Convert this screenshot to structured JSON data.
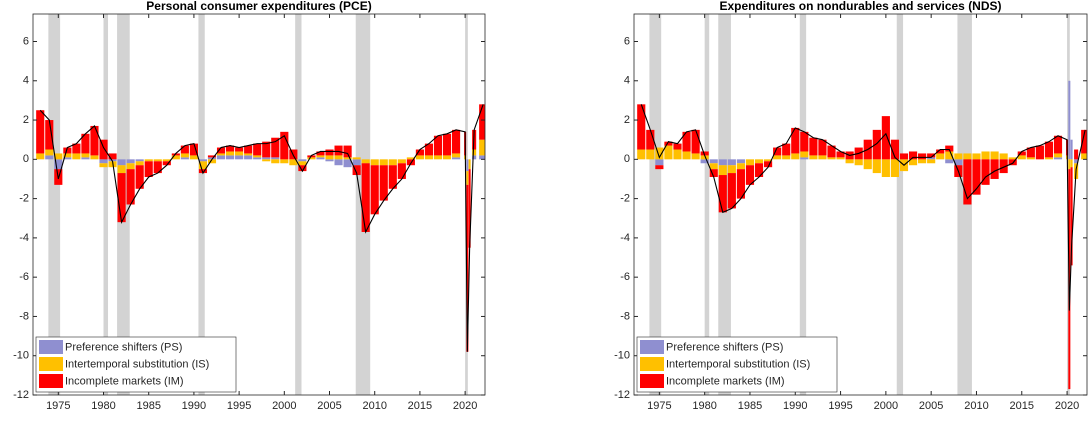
{
  "chart_data": [
    {
      "type": "bar",
      "title": "Personal consumer expenditures (PCE)",
      "x": [
        1973,
        1974,
        1975,
        1976,
        1977,
        1978,
        1979,
        1980,
        1981,
        1982,
        1983,
        1984,
        1985,
        1986,
        1987,
        1988,
        1989,
        1990,
        1991,
        1992,
        1993,
        1994,
        1995,
        1996,
        1997,
        1998,
        1999,
        2000,
        2001,
        2002,
        2003,
        2004,
        2005,
        2006,
        2007,
        2008,
        2009,
        2010,
        2011,
        2012,
        2013,
        2014,
        2015,
        2016,
        2017,
        2018,
        2019,
        2020,
        2020.25,
        2020.5,
        2021,
        2022
      ],
      "series": [
        {
          "name": "Preference shifters (PS)",
          "color": "#8f8fd0",
          "values": [
            0,
            0.2,
            -0.5,
            0.1,
            0,
            0.1,
            0,
            -0.2,
            -0.1,
            -0.3,
            -0.2,
            -0.1,
            0,
            0,
            0,
            0,
            0.1,
            0,
            -0.1,
            0.1,
            0.2,
            0.2,
            0.2,
            0.2,
            0.1,
            0.1,
            0.1,
            0,
            0,
            -0.1,
            0,
            0.1,
            -0.1,
            -0.3,
            -0.4,
            -0.3,
            0,
            0,
            0,
            0,
            0,
            0,
            0,
            0,
            0,
            0,
            0.1,
            0,
            -0.6,
            0,
            0.2,
            0.2
          ]
        },
        {
          "name": "Intertemporal substitution (IS)",
          "color": "#ffc000",
          "values": [
            0.3,
            0.3,
            0.3,
            0.2,
            0.3,
            0.2,
            0.2,
            -0.2,
            -0.3,
            -0.4,
            -0.3,
            -0.2,
            -0.1,
            -0.1,
            -0.1,
            0.2,
            0.2,
            0.2,
            -0.4,
            -0.2,
            0.1,
            0.2,
            0.2,
            0.1,
            0.1,
            -0.1,
            -0.2,
            -0.2,
            -0.3,
            -0.2,
            0.1,
            0.1,
            0.2,
            0.2,
            0.1,
            0.1,
            -0.2,
            -0.3,
            -0.3,
            -0.3,
            -0.2,
            0.1,
            0.2,
            0.2,
            0.2,
            0.2,
            0.2,
            0.2,
            -0.7,
            -0.5,
            0.3,
            0.8
          ]
        },
        {
          "name": "Incomplete markets (IM)",
          "color": "#ff0000",
          "values": [
            2.2,
            1.5,
            -0.8,
            0.3,
            0.5,
            1.0,
            1.5,
            1.0,
            0.3,
            -2.5,
            -1.8,
            -1.2,
            -0.8,
            -0.6,
            -0.2,
            0.1,
            0.4,
            0.6,
            -0.2,
            0.1,
            0.3,
            0.3,
            0.2,
            0.4,
            0.6,
            0.8,
            1.0,
            1.4,
            0.5,
            -0.3,
            0.1,
            0.2,
            0.3,
            0.5,
            0.6,
            -0.5,
            -3.5,
            -2.5,
            -1.8,
            -1.2,
            -0.8,
            -0.3,
            0.3,
            0.6,
            1.0,
            1.1,
            1.2,
            1.2,
            -8.5,
            -4.0,
            1.0,
            1.8
          ]
        }
      ],
      "recessions": [
        [
          1973.9,
          1975.2
        ],
        [
          1980.0,
          1980.5
        ],
        [
          1981.5,
          1982.9
        ],
        [
          1990.5,
          1991.2
        ],
        [
          2001.2,
          2001.9
        ],
        [
          2007.9,
          2009.5
        ],
        [
          2020.0,
          2020.3
        ]
      ],
      "recession_color": "#d3d3d3",
      "xlim": [
        1972.2,
        2022.2
      ],
      "xticks": [
        1975,
        1980,
        1985,
        1990,
        1995,
        2000,
        2005,
        2010,
        2015,
        2020
      ],
      "ylim": [
        -12,
        7.4
      ],
      "yticks": [
        -12,
        -10,
        -8,
        -6,
        -4,
        -2,
        0,
        2,
        4,
        6
      ],
      "legend": "lower left"
    },
    {
      "type": "bar",
      "title": "Expenditures on nondurables and services (NDS)",
      "x": [
        1973,
        1974,
        1975,
        1976,
        1977,
        1978,
        1979,
        1980,
        1981,
        1982,
        1983,
        1984,
        1985,
        1986,
        1987,
        1988,
        1989,
        1990,
        1991,
        1992,
        1993,
        1994,
        1995,
        1996,
        1997,
        1998,
        1999,
        2000,
        2001,
        2002,
        2003,
        2004,
        2005,
        2006,
        2007,
        2008,
        2009,
        2010,
        2011,
        2012,
        2013,
        2014,
        2015,
        2016,
        2017,
        2018,
        2019,
        2020,
        2020.25,
        2020.5,
        2021,
        2022
      ],
      "series": [
        {
          "name": "Preference shifters (PS)",
          "color": "#8f8fd0",
          "values": [
            0,
            0,
            -0.3,
            0,
            0,
            0,
            0,
            -0.2,
            -0.2,
            -0.3,
            -0.3,
            -0.2,
            0,
            0,
            0,
            0,
            0,
            0,
            0.1,
            0,
            0,
            0,
            0,
            0,
            0,
            0,
            0,
            0,
            0,
            0,
            0,
            0,
            0.1,
            0,
            -0.2,
            -0.3,
            0,
            0,
            0,
            0,
            0,
            0,
            0,
            0,
            0,
            0,
            0.1,
            0,
            4.0,
            1.0,
            -0.2,
            0
          ]
        },
        {
          "name": "Intertemporal substitution (IS)",
          "color": "#ffc000",
          "values": [
            0.5,
            0.5,
            0.6,
            0.7,
            0.5,
            0.4,
            0.3,
            0.2,
            -0.3,
            -0.5,
            -0.4,
            -0.3,
            -0.3,
            -0.2,
            -0.1,
            0.2,
            0.2,
            0.3,
            0.3,
            0.2,
            0.2,
            0.1,
            0.1,
            -0.2,
            -0.3,
            -0.5,
            -0.7,
            -0.9,
            -0.9,
            -0.6,
            -0.3,
            -0.2,
            -0.2,
            0.3,
            0.4,
            0.3,
            0.3,
            0.3,
            0.4,
            0.4,
            0.3,
            0.1,
            0.2,
            0.1,
            0,
            0.1,
            0.2,
            0.2,
            -0.5,
            -0.4,
            -0.8,
            0.3
          ]
        },
        {
          "name": "Incomplete markets (IM)",
          "color": "#ff0000",
          "values": [
            2.3,
            1.0,
            -0.2,
            0.2,
            0.3,
            1.0,
            1.2,
            0.2,
            -0.4,
            -1.9,
            -1.8,
            -1.5,
            -1.0,
            -0.7,
            -0.3,
            0.4,
            0.6,
            1.3,
            1.0,
            0.9,
            0.8,
            0.6,
            0.3,
            0.4,
            0.6,
            1.0,
            1.5,
            2.2,
            1.0,
            0.3,
            0.4,
            0.3,
            0.2,
            0.2,
            0.3,
            -0.6,
            -2.3,
            -1.8,
            -1.3,
            -1.0,
            -0.7,
            -0.3,
            0.2,
            0.5,
            0.7,
            0.8,
            0.9,
            0.8,
            -11.2,
            -5.0,
            0.5,
            1.2
          ]
        }
      ],
      "recessions": [
        [
          1973.9,
          1975.2
        ],
        [
          1980.0,
          1980.5
        ],
        [
          1981.5,
          1982.9
        ],
        [
          1990.5,
          1991.2
        ],
        [
          2001.2,
          2001.9
        ],
        [
          2007.9,
          2009.5
        ],
        [
          2020.0,
          2020.3
        ]
      ],
      "recession_color": "#d3d3d3",
      "xlim": [
        1972.2,
        2022.2
      ],
      "xticks": [
        1975,
        1980,
        1985,
        1990,
        1995,
        2000,
        2005,
        2010,
        2015,
        2020
      ],
      "ylim": [
        -12,
        7.4
      ],
      "yticks": [
        -12,
        -10,
        -8,
        -6,
        -4,
        -2,
        0,
        2,
        4,
        6
      ],
      "legend": "lower left"
    }
  ]
}
